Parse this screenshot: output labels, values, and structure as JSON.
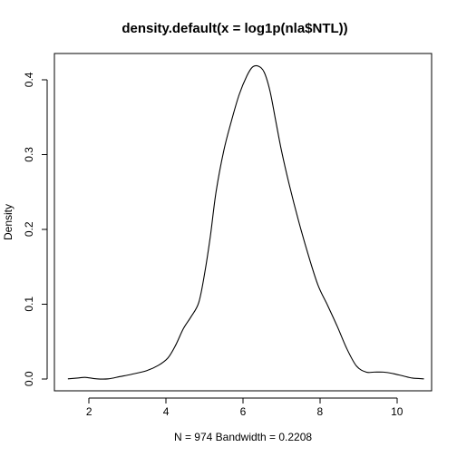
{
  "chart_data": {
    "type": "line",
    "title": "density.default(x = log1p(nla$NTL))",
    "xlabel": "N = 974   Bandwidth = 0.2208",
    "ylabel": "Density",
    "xlim": [
      1.1,
      10.9
    ],
    "ylim": [
      -0.016,
      0.435
    ],
    "x_ticks": [
      2,
      4,
      6,
      8,
      10
    ],
    "y_ticks": [
      0.0,
      0.1,
      0.2,
      0.3,
      0.4
    ],
    "x_tick_labels": [
      "2",
      "4",
      "6",
      "8",
      "10"
    ],
    "y_tick_labels": [
      "0.0",
      "0.1",
      "0.2",
      "0.3",
      "0.4"
    ],
    "grid": false,
    "series": [
      {
        "x": [
          1.45,
          1.7,
          1.9,
          2.2,
          2.5,
          2.8,
          3.1,
          3.5,
          3.8,
          4.05,
          4.25,
          4.45,
          4.65,
          4.85,
          5.0,
          5.15,
          5.3,
          5.5,
          5.7,
          5.9,
          6.1,
          6.25,
          6.4,
          6.55,
          6.7,
          6.85,
          7.0,
          7.2,
          7.45,
          7.7,
          7.95,
          8.2,
          8.45,
          8.7,
          8.95,
          9.2,
          9.4,
          9.65,
          9.9,
          10.15,
          10.4,
          10.7
        ],
        "y": [
          0.0,
          0.001,
          0.002,
          0.0,
          0.0,
          0.003,
          0.006,
          0.011,
          0.018,
          0.028,
          0.045,
          0.067,
          0.083,
          0.102,
          0.14,
          0.19,
          0.25,
          0.305,
          0.345,
          0.38,
          0.405,
          0.417,
          0.418,
          0.41,
          0.385,
          0.345,
          0.305,
          0.26,
          0.21,
          0.165,
          0.125,
          0.098,
          0.07,
          0.04,
          0.017,
          0.009,
          0.009,
          0.009,
          0.007,
          0.004,
          0.001,
          0.0
        ]
      }
    ]
  }
}
